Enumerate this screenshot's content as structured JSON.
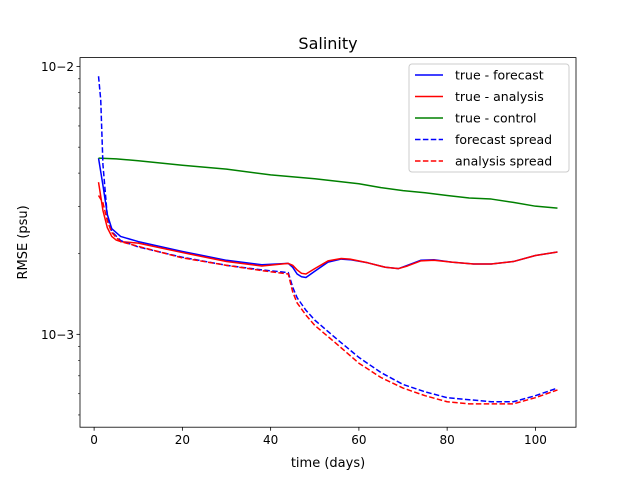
{
  "chart_data": {
    "type": "line",
    "title": "Salinity",
    "xlabel": "time (days)",
    "ylabel": "RMSE (psu)",
    "xlim": [
      -3.2,
      109.2
    ],
    "ylim": [
      0.00045,
      0.0108
    ],
    "yscale": "log",
    "grid": false,
    "legend_position": "top-right",
    "x_ticks": [
      0,
      20,
      40,
      60,
      80,
      100
    ],
    "x_tick_labels": [
      "0",
      "20",
      "40",
      "60",
      "80",
      "100"
    ],
    "y_ticks": [
      0.001,
      0.01
    ],
    "y_tick_labels": [
      "10−3",
      "10−2"
    ],
    "series": [
      {
        "name": "true - forecast",
        "color": "#0000ff",
        "dash": "solid",
        "x": [
          1,
          2,
          3,
          4,
          6,
          10,
          20,
          30,
          38,
          44,
          45,
          46,
          47,
          48,
          50,
          53,
          56,
          58,
          62,
          66,
          69,
          71,
          74,
          77,
          81,
          86,
          90,
          95,
          100,
          105
        ],
        "y": [
          0.00455,
          0.0036,
          0.0028,
          0.00248,
          0.00232,
          0.00222,
          0.00204,
          0.00189,
          0.00182,
          0.00184,
          0.00178,
          0.00168,
          0.00164,
          0.00163,
          0.00172,
          0.00186,
          0.00191,
          0.0019,
          0.00185,
          0.00178,
          0.00176,
          0.00181,
          0.00189,
          0.0019,
          0.00186,
          0.00183,
          0.00183,
          0.00187,
          0.00197,
          0.00203
        ]
      },
      {
        "name": "true - analysis",
        "color": "#ff0000",
        "dash": "solid",
        "x": [
          1,
          2,
          3,
          4,
          5,
          6,
          10,
          20,
          30,
          38,
          44,
          45,
          46,
          47,
          48,
          50,
          53,
          56,
          58,
          62,
          66,
          69,
          71,
          74,
          77,
          81,
          86,
          90,
          95,
          100,
          105
        ],
        "y": [
          0.0037,
          0.0029,
          0.0025,
          0.00232,
          0.00225,
          0.00222,
          0.00219,
          0.00202,
          0.00187,
          0.0018,
          0.00184,
          0.00181,
          0.00174,
          0.00169,
          0.00168,
          0.00176,
          0.00188,
          0.00192,
          0.00191,
          0.00185,
          0.00178,
          0.00176,
          0.0018,
          0.00188,
          0.00189,
          0.00186,
          0.00183,
          0.00183,
          0.00187,
          0.00197,
          0.00203
        ]
      },
      {
        "name": "true - control",
        "color": "#008000",
        "dash": "solid",
        "x": [
          1,
          5,
          10,
          20,
          30,
          40,
          50,
          60,
          65,
          70,
          75,
          80,
          85,
          90,
          95,
          100,
          105
        ],
        "y": [
          0.00455,
          0.00452,
          0.00445,
          0.00428,
          0.00414,
          0.00394,
          0.00381,
          0.00365,
          0.00353,
          0.00344,
          0.00338,
          0.0033,
          0.00323,
          0.0032,
          0.00311,
          0.00301,
          0.00296
        ]
      },
      {
        "name": "forecast spread",
        "color": "#0000ff",
        "dash": "dashed",
        "x": [
          1,
          1.5,
          2,
          3,
          4,
          6,
          10,
          20,
          30,
          38,
          44,
          45,
          46,
          48,
          50,
          55,
          60,
          65,
          70,
          75,
          80,
          85,
          90,
          95,
          100,
          105
        ],
        "y": [
          0.0092,
          0.0075,
          0.0043,
          0.00275,
          0.00242,
          0.00224,
          0.00212,
          0.00194,
          0.00181,
          0.00174,
          0.0017,
          0.0015,
          0.00137,
          0.00123,
          0.00113,
          0.00096,
          0.00082,
          0.00072,
          0.00065,
          0.00061,
          0.00058,
          0.00057,
          0.00056,
          0.00056,
          0.00059,
          0.00063
        ]
      },
      {
        "name": "analysis spread",
        "color": "#ff0000",
        "dash": "dashed",
        "x": [
          1,
          2,
          3,
          4,
          5,
          6,
          10,
          20,
          30,
          38,
          44,
          45,
          46,
          48,
          50,
          55,
          60,
          65,
          70,
          75,
          80,
          85,
          90,
          95,
          100,
          105
        ],
        "y": [
          0.0033,
          0.0031,
          0.00265,
          0.0024,
          0.0023,
          0.00222,
          0.00213,
          0.00193,
          0.00181,
          0.00173,
          0.00168,
          0.00144,
          0.00131,
          0.00118,
          0.00108,
          0.00092,
          0.00078,
          0.00069,
          0.00063,
          0.00059,
          0.00056,
          0.00055,
          0.00055,
          0.00055,
          0.00058,
          0.00062
        ]
      }
    ]
  }
}
